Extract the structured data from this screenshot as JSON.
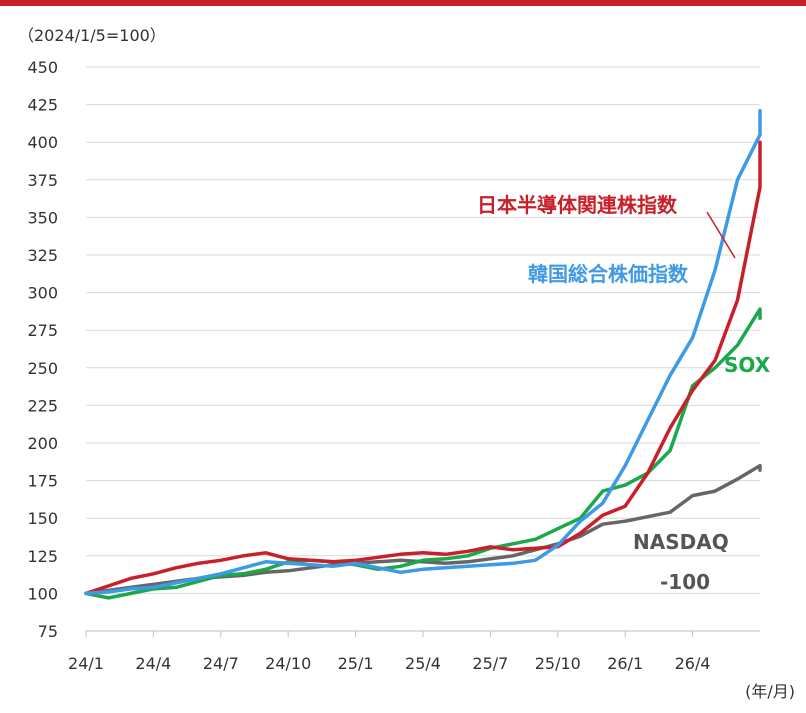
{
  "header_bar_color": "#c8202a",
  "chart_data": {
    "type": "line",
    "units_note": "（2024/1/5=100）",
    "xlabel": "(年/月)",
    "ylim": [
      75,
      450
    ],
    "yticks": [
      75,
      100,
      125,
      150,
      175,
      200,
      225,
      250,
      275,
      300,
      325,
      350,
      375,
      400,
      425,
      450
    ],
    "xlim": [
      "2024-01",
      "2026-07"
    ],
    "xticks": [
      {
        "x": "2024-01",
        "label": "24/1"
      },
      {
        "x": "2024-04",
        "label": "24/4"
      },
      {
        "x": "2024-07",
        "label": "24/7"
      },
      {
        "x": "2024-10",
        "label": "24/10"
      },
      {
        "x": "2025-01",
        "label": "25/1"
      },
      {
        "x": "2025-04",
        "label": "25/4"
      },
      {
        "x": "2025-07",
        "label": "25/7"
      },
      {
        "x": "2025-10",
        "label": "25/10"
      },
      {
        "x": "2026-01",
        "label": "26/1"
      },
      {
        "x": "2026-04",
        "label": "26/4"
      }
    ],
    "grid": true,
    "series": [
      {
        "name": "NASDAQ",
        "label_line2": "-100",
        "color": "#666666",
        "points": [
          [
            "2024-01",
            100
          ],
          [
            "2024-02",
            102
          ],
          [
            "2024-03",
            104
          ],
          [
            "2024-04",
            106
          ],
          [
            "2024-05",
            108
          ],
          [
            "2024-06",
            110
          ],
          [
            "2024-07",
            111
          ],
          [
            "2024-08",
            112
          ],
          [
            "2024-09",
            114
          ],
          [
            "2024-10",
            115
          ],
          [
            "2024-11",
            117
          ],
          [
            "2024-12",
            119
          ],
          [
            "2025-01",
            120
          ],
          [
            "2025-02",
            121
          ],
          [
            "2025-03",
            122
          ],
          [
            "2025-04",
            121
          ],
          [
            "2025-05",
            120
          ],
          [
            "2025-06",
            121
          ],
          [
            "2025-07",
            123
          ],
          [
            "2025-08",
            125
          ],
          [
            "2025-09",
            129
          ],
          [
            "2025-10",
            133
          ],
          [
            "2025-11",
            138
          ],
          [
            "2025-12",
            146
          ],
          [
            "2026-01",
            148
          ],
          [
            "2026-02",
            151
          ],
          [
            "2026-03",
            154
          ],
          [
            "2026-04",
            165
          ],
          [
            "2026-05",
            168
          ],
          [
            "2026-06",
            176
          ],
          [
            "2026-07",
            185
          ],
          [
            "2026-07",
            182
          ]
        ]
      },
      {
        "name": "SOX",
        "color": "#1aa84b",
        "points": [
          [
            "2024-01",
            100
          ],
          [
            "2024-02",
            97
          ],
          [
            "2024-03",
            100
          ],
          [
            "2024-04",
            103
          ],
          [
            "2024-05",
            104
          ],
          [
            "2024-06",
            108
          ],
          [
            "2024-07",
            112
          ],
          [
            "2024-08",
            113
          ],
          [
            "2024-09",
            116
          ],
          [
            "2024-10",
            121
          ],
          [
            "2024-11",
            122
          ],
          [
            "2024-12",
            121
          ],
          [
            "2025-01",
            119
          ],
          [
            "2025-02",
            116
          ],
          [
            "2025-03",
            118
          ],
          [
            "2025-04",
            122
          ],
          [
            "2025-05",
            123
          ],
          [
            "2025-06",
            125
          ],
          [
            "2025-07",
            130
          ],
          [
            "2025-08",
            133
          ],
          [
            "2025-09",
            136
          ],
          [
            "2025-10",
            143
          ],
          [
            "2025-11",
            150
          ],
          [
            "2025-12",
            168
          ],
          [
            "2026-01",
            172
          ],
          [
            "2026-02",
            180
          ],
          [
            "2026-03",
            195
          ],
          [
            "2026-04",
            238
          ],
          [
            "2026-05",
            250
          ],
          [
            "2026-06",
            265
          ],
          [
            "2026-07",
            289
          ],
          [
            "2026-07",
            283
          ]
        ]
      },
      {
        "name": "日本半導体関連株指数",
        "color": "#c8202a",
        "points": [
          [
            "2024-01",
            100
          ],
          [
            "2024-02",
            105
          ],
          [
            "2024-03",
            110
          ],
          [
            "2024-04",
            113
          ],
          [
            "2024-05",
            117
          ],
          [
            "2024-06",
            120
          ],
          [
            "2024-07",
            122
          ],
          [
            "2024-08",
            125
          ],
          [
            "2024-09",
            127
          ],
          [
            "2024-10",
            123
          ],
          [
            "2024-11",
            122
          ],
          [
            "2024-12",
            121
          ],
          [
            "2025-01",
            122
          ],
          [
            "2025-02",
            124
          ],
          [
            "2025-03",
            126
          ],
          [
            "2025-04",
            127
          ],
          [
            "2025-05",
            126
          ],
          [
            "2025-06",
            128
          ],
          [
            "2025-07",
            131
          ],
          [
            "2025-08",
            129
          ],
          [
            "2025-09",
            130
          ],
          [
            "2025-10",
            131
          ],
          [
            "2025-11",
            140
          ],
          [
            "2025-12",
            152
          ],
          [
            "2026-01",
            158
          ],
          [
            "2026-02",
            180
          ],
          [
            "2026-03",
            210
          ],
          [
            "2026-04",
            235
          ],
          [
            "2026-05",
            255
          ],
          [
            "2026-06",
            295
          ],
          [
            "2026-07",
            370
          ],
          [
            "2026-07",
            400
          ]
        ]
      },
      {
        "name": "韓国総合株価指数",
        "color": "#3f9ae6",
        "points": [
          [
            "2024-01",
            100
          ],
          [
            "2024-02",
            101
          ],
          [
            "2024-03",
            103
          ],
          [
            "2024-04",
            104
          ],
          [
            "2024-05",
            107
          ],
          [
            "2024-06",
            110
          ],
          [
            "2024-07",
            113
          ],
          [
            "2024-08",
            117
          ],
          [
            "2024-09",
            121
          ],
          [
            "2024-10",
            120
          ],
          [
            "2024-11",
            119
          ],
          [
            "2024-12",
            118
          ],
          [
            "2025-01",
            120
          ],
          [
            "2025-02",
            117
          ],
          [
            "2025-03",
            114
          ],
          [
            "2025-04",
            116
          ],
          [
            "2025-05",
            117
          ],
          [
            "2025-06",
            118
          ],
          [
            "2025-07",
            119
          ],
          [
            "2025-08",
            120
          ],
          [
            "2025-09",
            122
          ],
          [
            "2025-10",
            132
          ],
          [
            "2025-11",
            148
          ],
          [
            "2025-12",
            160
          ],
          [
            "2026-01",
            185
          ],
          [
            "2026-02",
            215
          ],
          [
            "2026-03",
            245
          ],
          [
            "2026-04",
            270
          ],
          [
            "2026-05",
            315
          ],
          [
            "2026-06",
            375
          ],
          [
            "2026-07",
            405
          ],
          [
            "2026-07",
            421
          ]
        ]
      }
    ]
  }
}
